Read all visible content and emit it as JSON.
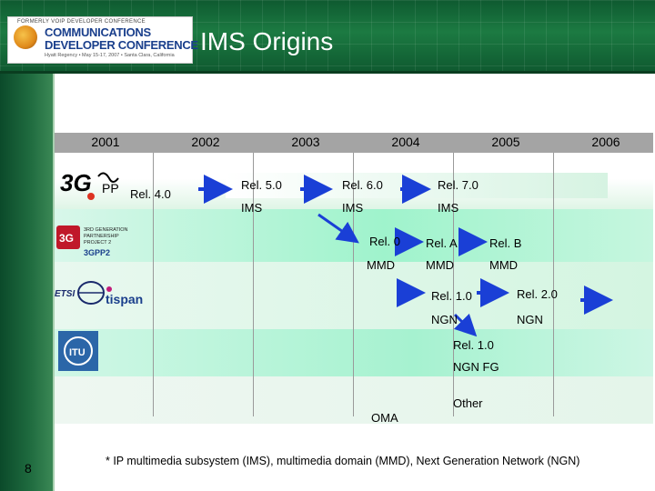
{
  "header": {
    "logo_top": "FORMERLY VOIP DEVELOPER CONFERENCE",
    "logo_line1": "COMMUNICATIONS",
    "logo_line2": "DEVELOPER CONFERENCE",
    "logo_sub": "Hyatt Regency • May 15-17, 2007 • Santa Clara, California",
    "title": "IMS Origins"
  },
  "years": [
    "2001",
    "2002",
    "2003",
    "2004",
    "2005",
    "2006"
  ],
  "rows": {
    "threegpp": {
      "logo_text": "3GPP",
      "items": [
        "Rel. 4.0",
        "Rel. 5.0",
        "IMS",
        "Rel. 6.0",
        "IMS",
        "Rel. 7.0",
        "IMS"
      ]
    },
    "threegpp2": {
      "logo_text": "3GPP2",
      "logo_sub": "3RD GENERATION PARTNERSHIP PROJECT 2",
      "items": [
        "Rel. 0",
        "MMD",
        "Rel. A",
        "MMD",
        "Rel. B",
        "MMD"
      ]
    },
    "etsi": {
      "logo_text_1": "ETSI",
      "logo_text_2": "tispan",
      "items": [
        "Rel. 1.0",
        "NGN",
        "Rel. 2.0",
        "NGN"
      ]
    },
    "itu": {
      "logo_text": "ITU",
      "items": [
        "Rel. 1.0",
        "NGN FG"
      ]
    },
    "other": {
      "items": [
        "OMA",
        "Other"
      ]
    }
  },
  "colors": {
    "arrow": "#1a3fd6",
    "row_band_light": "#e4f7ec",
    "row_band_mint": "#8ff0c4",
    "year_band": "#a4a4a4"
  },
  "footnote": "* IP multimedia subsystem (IMS), multimedia domain (MMD), Next Generation Network (NGN)",
  "slide_number": "8"
}
